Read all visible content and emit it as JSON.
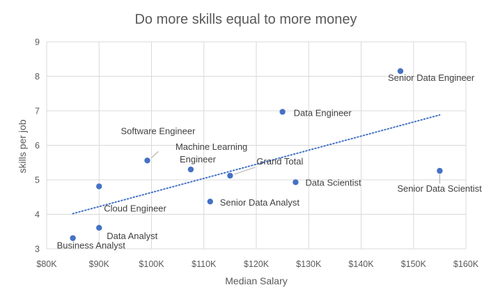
{
  "chart_data": {
    "type": "scatter",
    "title": "Do more skills equal to more money",
    "xlabel": "Median Salary",
    "ylabel": "skills per job",
    "xlim": [
      80000,
      160000
    ],
    "ylim": [
      3,
      9
    ],
    "x_ticks": [
      80000,
      90000,
      100000,
      110000,
      120000,
      130000,
      140000,
      150000,
      160000
    ],
    "x_tick_labels": [
      "$80K",
      "$90K",
      "$100K",
      "$110K",
      "$120K",
      "$130K",
      "$140K",
      "$150K",
      "$160K"
    ],
    "y_ticks": [
      3,
      4,
      5,
      6,
      7,
      8,
      9
    ],
    "y_tick_labels": [
      "3",
      "4",
      "5",
      "6",
      "7",
      "8",
      "9"
    ],
    "grid": true,
    "marker_color": "#4472c4",
    "trendline": {
      "type": "linear",
      "style": "dotted",
      "color": "#4472c4",
      "x": [
        85000,
        155000
      ],
      "y": [
        4.02,
        6.88
      ]
    },
    "points": [
      {
        "label": "Senior Data Engineer",
        "x": 147500,
        "y": 8.15
      },
      {
        "label": "Data Engineer",
        "x": 125000,
        "y": 6.97
      },
      {
        "label": "Software Engineer",
        "x": 99200,
        "y": 5.56
      },
      {
        "label": "Machine Learning Engineer",
        "x": 107500,
        "y": 5.3
      },
      {
        "label": "Grand Total",
        "x": 115000,
        "y": 5.12
      },
      {
        "label": "Senior Data Scientist",
        "x": 155000,
        "y": 5.26
      },
      {
        "label": "Data Scientist",
        "x": 127500,
        "y": 4.93
      },
      {
        "label": "Cloud Engineer",
        "x": 90000,
        "y": 4.81
      },
      {
        "label": "Senior Data Analyst",
        "x": 111200,
        "y": 4.37
      },
      {
        "label": "Data Analyst",
        "x": 90000,
        "y": 3.61
      },
      {
        "label": "Business Analyst",
        "x": 85000,
        "y": 3.31
      }
    ]
  }
}
